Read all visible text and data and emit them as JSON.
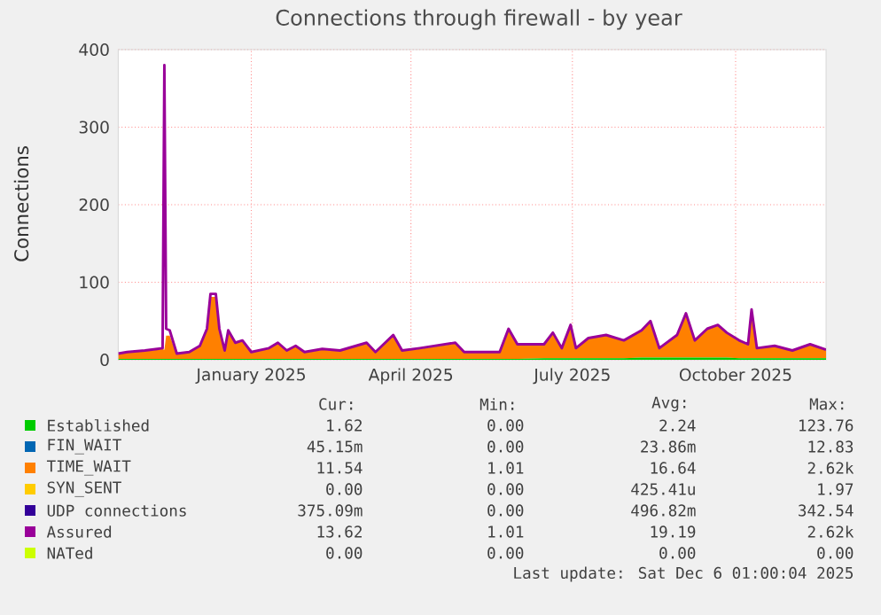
{
  "chart_data": {
    "type": "area",
    "title": "Connections through firewall - by year",
    "ylabel": "Connections",
    "stacked": true,
    "legend": "bottom",
    "grid": true,
    "xlim": [
      "2024-11-02",
      "2025-12-06"
    ],
    "xticks": [
      {
        "value": "2025-01-16",
        "label": "January 2025"
      },
      {
        "value": "2025-04-16",
        "label": "April 2025"
      },
      {
        "value": "2025-07-16",
        "label": "July 2025"
      },
      {
        "value": "2025-10-16",
        "label": "October 2025"
      }
    ],
    "ylim": [
      0,
      400
    ],
    "yticks": [
      0,
      100,
      200,
      300,
      400
    ],
    "x": [
      "2024-11-02",
      "2024-11-07",
      "2024-11-17",
      "2024-11-24",
      "2024-11-27",
      "2024-11-28",
      "2024-11-29",
      "2024-12-01",
      "2024-12-05",
      "2024-12-12",
      "2024-12-18",
      "2024-12-22",
      "2024-12-24",
      "2024-12-27",
      "2024-12-29",
      "2025-01-01",
      "2025-01-03",
      "2025-01-07",
      "2025-01-11",
      "2025-01-16",
      "2025-01-26",
      "2025-01-31",
      "2025-02-05",
      "2025-02-10",
      "2025-02-15",
      "2025-02-25",
      "2025-03-07",
      "2025-03-22",
      "2025-03-27",
      "2025-04-06",
      "2025-04-11",
      "2025-04-21",
      "2025-05-11",
      "2025-05-16",
      "2025-06-05",
      "2025-06-10",
      "2025-06-15",
      "2025-06-30",
      "2025-07-05",
      "2025-07-10",
      "2025-07-15",
      "2025-07-18",
      "2025-07-25",
      "2025-08-04",
      "2025-08-14",
      "2025-08-24",
      "2025-08-29",
      "2025-09-03",
      "2025-09-13",
      "2025-09-18",
      "2025-09-23",
      "2025-09-30",
      "2025-10-06",
      "2025-10-11",
      "2025-10-18",
      "2025-10-23",
      "2025-10-25",
      "2025-10-28",
      "2025-11-07",
      "2025-11-17",
      "2025-11-27",
      "2025-12-06"
    ],
    "series": [
      {
        "name": "Established",
        "type": "area",
        "color": "#00cc00",
        "values": [
          1,
          1,
          1,
          1,
          1,
          1,
          1,
          1,
          1,
          1,
          1,
          1,
          1,
          1,
          1,
          1,
          1,
          1,
          1,
          1,
          1,
          1,
          1,
          1,
          1,
          1,
          1,
          1,
          1,
          1,
          1,
          1,
          1,
          1,
          1,
          1,
          1,
          2,
          2,
          2,
          2,
          2,
          2,
          2,
          2,
          3,
          3,
          3,
          3,
          3,
          3,
          3,
          3,
          3,
          2,
          2,
          2,
          2,
          2,
          2,
          2,
          2
        ]
      },
      {
        "name": "FIN_WAIT",
        "type": "area",
        "color": "#0066b3",
        "values": [
          null,
          null,
          null,
          null,
          null,
          null,
          null,
          null,
          null,
          null,
          null,
          null,
          null,
          null,
          null,
          null,
          null,
          null,
          null,
          null,
          null,
          null,
          null,
          null,
          null,
          null,
          null,
          null,
          null,
          null,
          null,
          null,
          null,
          null,
          null,
          null,
          null,
          null,
          null,
          null,
          null,
          null,
          null,
          null,
          null,
          null,
          null,
          null,
          null,
          null,
          null,
          null,
          null,
          null,
          null,
          null,
          null,
          null,
          null,
          null,
          null,
          null
        ]
      },
      {
        "name": "TIME_WAIT",
        "type": "area",
        "color": "#ff8000",
        "values": [
          6,
          8,
          10,
          12,
          13,
          12,
          30,
          30,
          6,
          8,
          16,
          38,
          80,
          80,
          38,
          10,
          35,
          20,
          23,
          8,
          13,
          20,
          10,
          16,
          8,
          12,
          10,
          20,
          8,
          30,
          10,
          13,
          20,
          8,
          8,
          38,
          18,
          17,
          32,
          12,
          42,
          12,
          25,
          29,
          22,
          34,
          46,
          11,
          28,
          56,
          21,
          36,
          41,
          31,
          22,
          17,
          62,
          12,
          15,
          9,
          17,
          10
        ]
      },
      {
        "name": "SYN_SENT",
        "type": "area",
        "color": "#ffcc00",
        "values": [
          null,
          null,
          null,
          null,
          null,
          null,
          null,
          null,
          null,
          null,
          null,
          null,
          null,
          null,
          null,
          null,
          null,
          null,
          null,
          null,
          null,
          null,
          null,
          null,
          null,
          null,
          null,
          null,
          null,
          null,
          null,
          null,
          null,
          null,
          null,
          null,
          null,
          null,
          null,
          null,
          null,
          null,
          null,
          null,
          null,
          null,
          null,
          null,
          null,
          null,
          null,
          null,
          null,
          null,
          null,
          null,
          null,
          null,
          null,
          null,
          null,
          null
        ]
      },
      {
        "name": "UDP connections",
        "type": "area",
        "color": "#330099",
        "values": [
          null,
          null,
          null,
          null,
          null,
          null,
          null,
          null,
          null,
          null,
          null,
          null,
          null,
          null,
          null,
          null,
          null,
          null,
          null,
          null,
          null,
          null,
          null,
          null,
          null,
          null,
          null,
          null,
          null,
          null,
          null,
          null,
          null,
          null,
          null,
          null,
          null,
          null,
          null,
          null,
          null,
          null,
          null,
          null,
          null,
          null,
          null,
          null,
          null,
          null,
          null,
          null,
          null,
          null,
          null,
          null,
          null,
          null,
          null,
          null,
          null,
          null
        ]
      },
      {
        "name": "Assured",
        "type": "line",
        "color": "#990099",
        "values": [
          8,
          10,
          12,
          14,
          15,
          380,
          40,
          38,
          8,
          10,
          18,
          40,
          85,
          85,
          40,
          12,
          38,
          22,
          25,
          10,
          15,
          22,
          12,
          18,
          10,
          14,
          12,
          22,
          10,
          32,
          12,
          15,
          22,
          10,
          10,
          40,
          20,
          20,
          35,
          15,
          45,
          15,
          28,
          32,
          25,
          38,
          50,
          15,
          32,
          60,
          25,
          40,
          45,
          35,
          25,
          20,
          65,
          15,
          18,
          12,
          20,
          13
        ]
      },
      {
        "name": "NATed",
        "type": "line",
        "color": "#ccff00",
        "values": [
          null,
          null,
          null,
          null,
          null,
          null,
          null,
          null,
          null,
          null,
          null,
          null,
          null,
          null,
          null,
          null,
          null,
          null,
          null,
          null,
          null,
          null,
          null,
          null,
          null,
          null,
          null,
          null,
          null,
          null,
          null,
          null,
          null,
          null,
          null,
          null,
          null,
          null,
          null,
          null,
          null,
          null,
          null,
          null,
          null,
          null,
          null,
          null,
          null,
          null,
          null,
          null,
          null,
          null,
          null,
          null,
          null,
          null,
          null,
          null,
          null,
          null
        ]
      }
    ],
    "annotations": [
      "Cur:",
      "Min:",
      "Avg:",
      "Max:",
      "1.62",
      "0.00",
      "2.24",
      "123.76",
      "45.15m",
      "0.00",
      "23.86m",
      "12.83",
      "11.54",
      "1.01",
      "16.64",
      "2.62k",
      "0.00",
      "0.00",
      "425.41u",
      "1.97",
      "375.09m",
      "0.00",
      "496.82m",
      "342.54",
      "13.62",
      "1.01",
      "19.19",
      "2.62k",
      "0.00",
      "0.00",
      "0.00",
      "0.00",
      "Last update: Sat Dec  6 01:00:04 2025"
    ]
  }
}
